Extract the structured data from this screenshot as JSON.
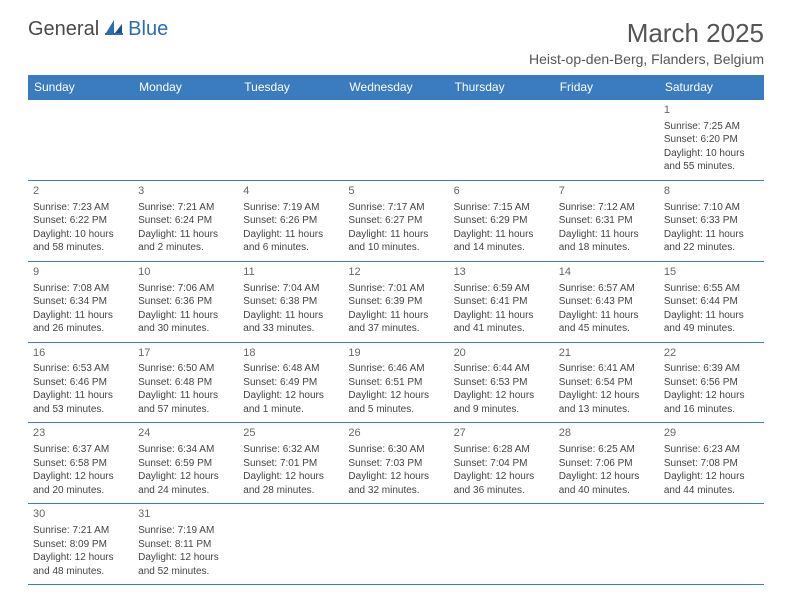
{
  "brand": {
    "part1": "General",
    "part2": "Blue"
  },
  "title": "March 2025",
  "location": "Heist-op-den-Berg, Flanders, Belgium",
  "colors": {
    "header_bg": "#3b7bbf",
    "header_text": "#ffffff",
    "border": "#3b7bbf",
    "text": "#444444",
    "brand_gray": "#4a4a4a",
    "brand_blue": "#2a6db5"
  },
  "day_headers": [
    "Sunday",
    "Monday",
    "Tuesday",
    "Wednesday",
    "Thursday",
    "Friday",
    "Saturday"
  ],
  "weeks": [
    [
      null,
      null,
      null,
      null,
      null,
      null,
      {
        "n": "1",
        "sunrise": "Sunrise: 7:25 AM",
        "sunset": "Sunset: 6:20 PM",
        "day1": "Daylight: 10 hours",
        "day2": "and 55 minutes."
      }
    ],
    [
      {
        "n": "2",
        "sunrise": "Sunrise: 7:23 AM",
        "sunset": "Sunset: 6:22 PM",
        "day1": "Daylight: 10 hours",
        "day2": "and 58 minutes."
      },
      {
        "n": "3",
        "sunrise": "Sunrise: 7:21 AM",
        "sunset": "Sunset: 6:24 PM",
        "day1": "Daylight: 11 hours",
        "day2": "and 2 minutes."
      },
      {
        "n": "4",
        "sunrise": "Sunrise: 7:19 AM",
        "sunset": "Sunset: 6:26 PM",
        "day1": "Daylight: 11 hours",
        "day2": "and 6 minutes."
      },
      {
        "n": "5",
        "sunrise": "Sunrise: 7:17 AM",
        "sunset": "Sunset: 6:27 PM",
        "day1": "Daylight: 11 hours",
        "day2": "and 10 minutes."
      },
      {
        "n": "6",
        "sunrise": "Sunrise: 7:15 AM",
        "sunset": "Sunset: 6:29 PM",
        "day1": "Daylight: 11 hours",
        "day2": "and 14 minutes."
      },
      {
        "n": "7",
        "sunrise": "Sunrise: 7:12 AM",
        "sunset": "Sunset: 6:31 PM",
        "day1": "Daylight: 11 hours",
        "day2": "and 18 minutes."
      },
      {
        "n": "8",
        "sunrise": "Sunrise: 7:10 AM",
        "sunset": "Sunset: 6:33 PM",
        "day1": "Daylight: 11 hours",
        "day2": "and 22 minutes."
      }
    ],
    [
      {
        "n": "9",
        "sunrise": "Sunrise: 7:08 AM",
        "sunset": "Sunset: 6:34 PM",
        "day1": "Daylight: 11 hours",
        "day2": "and 26 minutes."
      },
      {
        "n": "10",
        "sunrise": "Sunrise: 7:06 AM",
        "sunset": "Sunset: 6:36 PM",
        "day1": "Daylight: 11 hours",
        "day2": "and 30 minutes."
      },
      {
        "n": "11",
        "sunrise": "Sunrise: 7:04 AM",
        "sunset": "Sunset: 6:38 PM",
        "day1": "Daylight: 11 hours",
        "day2": "and 33 minutes."
      },
      {
        "n": "12",
        "sunrise": "Sunrise: 7:01 AM",
        "sunset": "Sunset: 6:39 PM",
        "day1": "Daylight: 11 hours",
        "day2": "and 37 minutes."
      },
      {
        "n": "13",
        "sunrise": "Sunrise: 6:59 AM",
        "sunset": "Sunset: 6:41 PM",
        "day1": "Daylight: 11 hours",
        "day2": "and 41 minutes."
      },
      {
        "n": "14",
        "sunrise": "Sunrise: 6:57 AM",
        "sunset": "Sunset: 6:43 PM",
        "day1": "Daylight: 11 hours",
        "day2": "and 45 minutes."
      },
      {
        "n": "15",
        "sunrise": "Sunrise: 6:55 AM",
        "sunset": "Sunset: 6:44 PM",
        "day1": "Daylight: 11 hours",
        "day2": "and 49 minutes."
      }
    ],
    [
      {
        "n": "16",
        "sunrise": "Sunrise: 6:53 AM",
        "sunset": "Sunset: 6:46 PM",
        "day1": "Daylight: 11 hours",
        "day2": "and 53 minutes."
      },
      {
        "n": "17",
        "sunrise": "Sunrise: 6:50 AM",
        "sunset": "Sunset: 6:48 PM",
        "day1": "Daylight: 11 hours",
        "day2": "and 57 minutes."
      },
      {
        "n": "18",
        "sunrise": "Sunrise: 6:48 AM",
        "sunset": "Sunset: 6:49 PM",
        "day1": "Daylight: 12 hours",
        "day2": "and 1 minute."
      },
      {
        "n": "19",
        "sunrise": "Sunrise: 6:46 AM",
        "sunset": "Sunset: 6:51 PM",
        "day1": "Daylight: 12 hours",
        "day2": "and 5 minutes."
      },
      {
        "n": "20",
        "sunrise": "Sunrise: 6:44 AM",
        "sunset": "Sunset: 6:53 PM",
        "day1": "Daylight: 12 hours",
        "day2": "and 9 minutes."
      },
      {
        "n": "21",
        "sunrise": "Sunrise: 6:41 AM",
        "sunset": "Sunset: 6:54 PM",
        "day1": "Daylight: 12 hours",
        "day2": "and 13 minutes."
      },
      {
        "n": "22",
        "sunrise": "Sunrise: 6:39 AM",
        "sunset": "Sunset: 6:56 PM",
        "day1": "Daylight: 12 hours",
        "day2": "and 16 minutes."
      }
    ],
    [
      {
        "n": "23",
        "sunrise": "Sunrise: 6:37 AM",
        "sunset": "Sunset: 6:58 PM",
        "day1": "Daylight: 12 hours",
        "day2": "and 20 minutes."
      },
      {
        "n": "24",
        "sunrise": "Sunrise: 6:34 AM",
        "sunset": "Sunset: 6:59 PM",
        "day1": "Daylight: 12 hours",
        "day2": "and 24 minutes."
      },
      {
        "n": "25",
        "sunrise": "Sunrise: 6:32 AM",
        "sunset": "Sunset: 7:01 PM",
        "day1": "Daylight: 12 hours",
        "day2": "and 28 minutes."
      },
      {
        "n": "26",
        "sunrise": "Sunrise: 6:30 AM",
        "sunset": "Sunset: 7:03 PM",
        "day1": "Daylight: 12 hours",
        "day2": "and 32 minutes."
      },
      {
        "n": "27",
        "sunrise": "Sunrise: 6:28 AM",
        "sunset": "Sunset: 7:04 PM",
        "day1": "Daylight: 12 hours",
        "day2": "and 36 minutes."
      },
      {
        "n": "28",
        "sunrise": "Sunrise: 6:25 AM",
        "sunset": "Sunset: 7:06 PM",
        "day1": "Daylight: 12 hours",
        "day2": "and 40 minutes."
      },
      {
        "n": "29",
        "sunrise": "Sunrise: 6:23 AM",
        "sunset": "Sunset: 7:08 PM",
        "day1": "Daylight: 12 hours",
        "day2": "and 44 minutes."
      }
    ],
    [
      {
        "n": "30",
        "sunrise": "Sunrise: 7:21 AM",
        "sunset": "Sunset: 8:09 PM",
        "day1": "Daylight: 12 hours",
        "day2": "and 48 minutes."
      },
      {
        "n": "31",
        "sunrise": "Sunrise: 7:19 AM",
        "sunset": "Sunset: 8:11 PM",
        "day1": "Daylight: 12 hours",
        "day2": "and 52 minutes."
      },
      null,
      null,
      null,
      null,
      null
    ]
  ]
}
